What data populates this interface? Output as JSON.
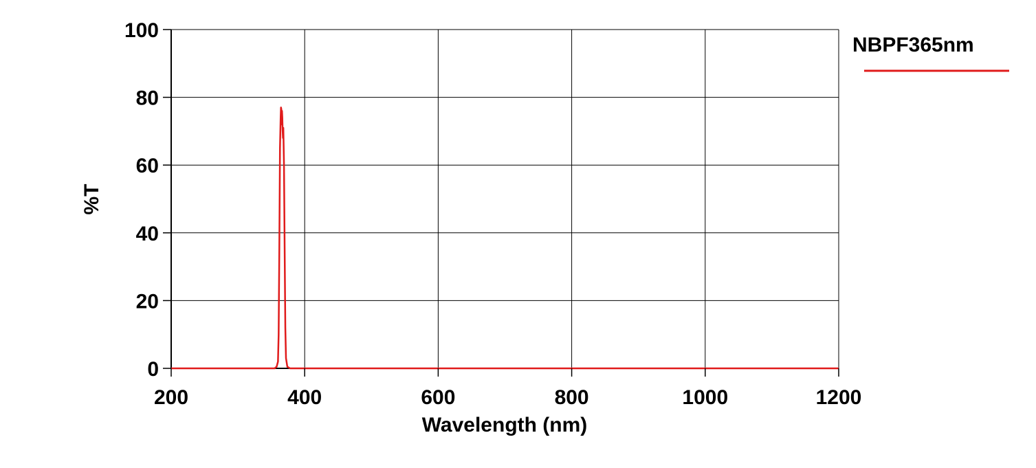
{
  "chart_data": {
    "type": "line",
    "xlabel": "Wavelength (nm)",
    "ylabel": "%T",
    "xlim": [
      200,
      1200
    ],
    "ylim": [
      0,
      100
    ],
    "xticks": [
      200,
      400,
      600,
      800,
      1000,
      1200
    ],
    "yticks": [
      0,
      20,
      40,
      60,
      80,
      100
    ],
    "grid": true,
    "legend_position": "top-right",
    "series": [
      {
        "name": "NBPF365nm",
        "color": "#e01b1b",
        "x": [
          200,
          340,
          355,
          358,
          360,
          361,
          362,
          363,
          364,
          364.5,
          365,
          365.5,
          366,
          366.5,
          367,
          367.5,
          368,
          369,
          370,
          371,
          372,
          374,
          378,
          390,
          600,
          1000,
          1200
        ],
        "y": [
          0,
          0,
          0,
          0.5,
          2,
          10,
          35,
          65,
          74,
          77,
          76.5,
          72,
          76,
          74,
          70,
          68,
          71,
          60,
          35,
          12,
          3,
          0.5,
          0,
          0,
          0,
          0,
          0
        ]
      }
    ]
  }
}
